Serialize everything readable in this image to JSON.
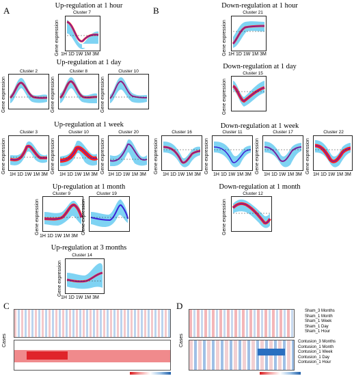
{
  "panel_letters": {
    "a": "A",
    "b": "B",
    "c": "C",
    "d": "D"
  },
  "x_tick_labels": [
    "1H",
    "1D",
    "1W",
    "1M",
    "3M"
  ],
  "y_axis_label": "Gene expression",
  "sections": {
    "up_1h": "Up-regulation at 1 hour",
    "up_1d": "Up-regulation at 1 day",
    "up_1w": "Up-regulation at 1 week",
    "up_1m": "Up-regulation at 1 month",
    "up_3m": "Up-regulation at 3 months",
    "down_1h": "Down-regulation at 1 hour",
    "down_1d": "Down-regulation at 1 day",
    "down_1w": "Down-regulation at 1 week",
    "down_1m": "Down-regulation at 1 month"
  },
  "clusters": {
    "c7": "Cluster 7",
    "c2": "Cluster 2",
    "c8": "Cluster 8",
    "c10a": "Cluster 10",
    "c3": "Cluster 3",
    "c10b": "Cluster 10",
    "c20": "Cluster 20",
    "c9": "Cluster 9",
    "c19": "Cluster 19",
    "c14": "Cluster 14",
    "c21": "Cluster 21",
    "c15": "Cluster 15",
    "c16": "Cluster 16",
    "c11": "Cluster 11",
    "c17": "Cluster 17",
    "c22": "Cluster 22",
    "c12": "Cluster 12"
  },
  "heatmap": {
    "cases_label": "Cases",
    "sham_rows": [
      "Sham_3 Months",
      "Sham_1 Month",
      "Sham_1 Week",
      "Sham_1 Day",
      "Sham_1 Hour"
    ],
    "contusion_rows": [
      "Contusion_3 Months",
      "Contusion_1 Month",
      "Contusion_1 Week",
      "Contusion_1 Day",
      "Contusion_1 Hour"
    ]
  },
  "colors": {
    "band": "#7fd3f3",
    "lines": "#ff2020",
    "mean": "#3a1fd6",
    "heat_red": "#e0242a",
    "heat_blue": "#2a6fc0"
  }
}
